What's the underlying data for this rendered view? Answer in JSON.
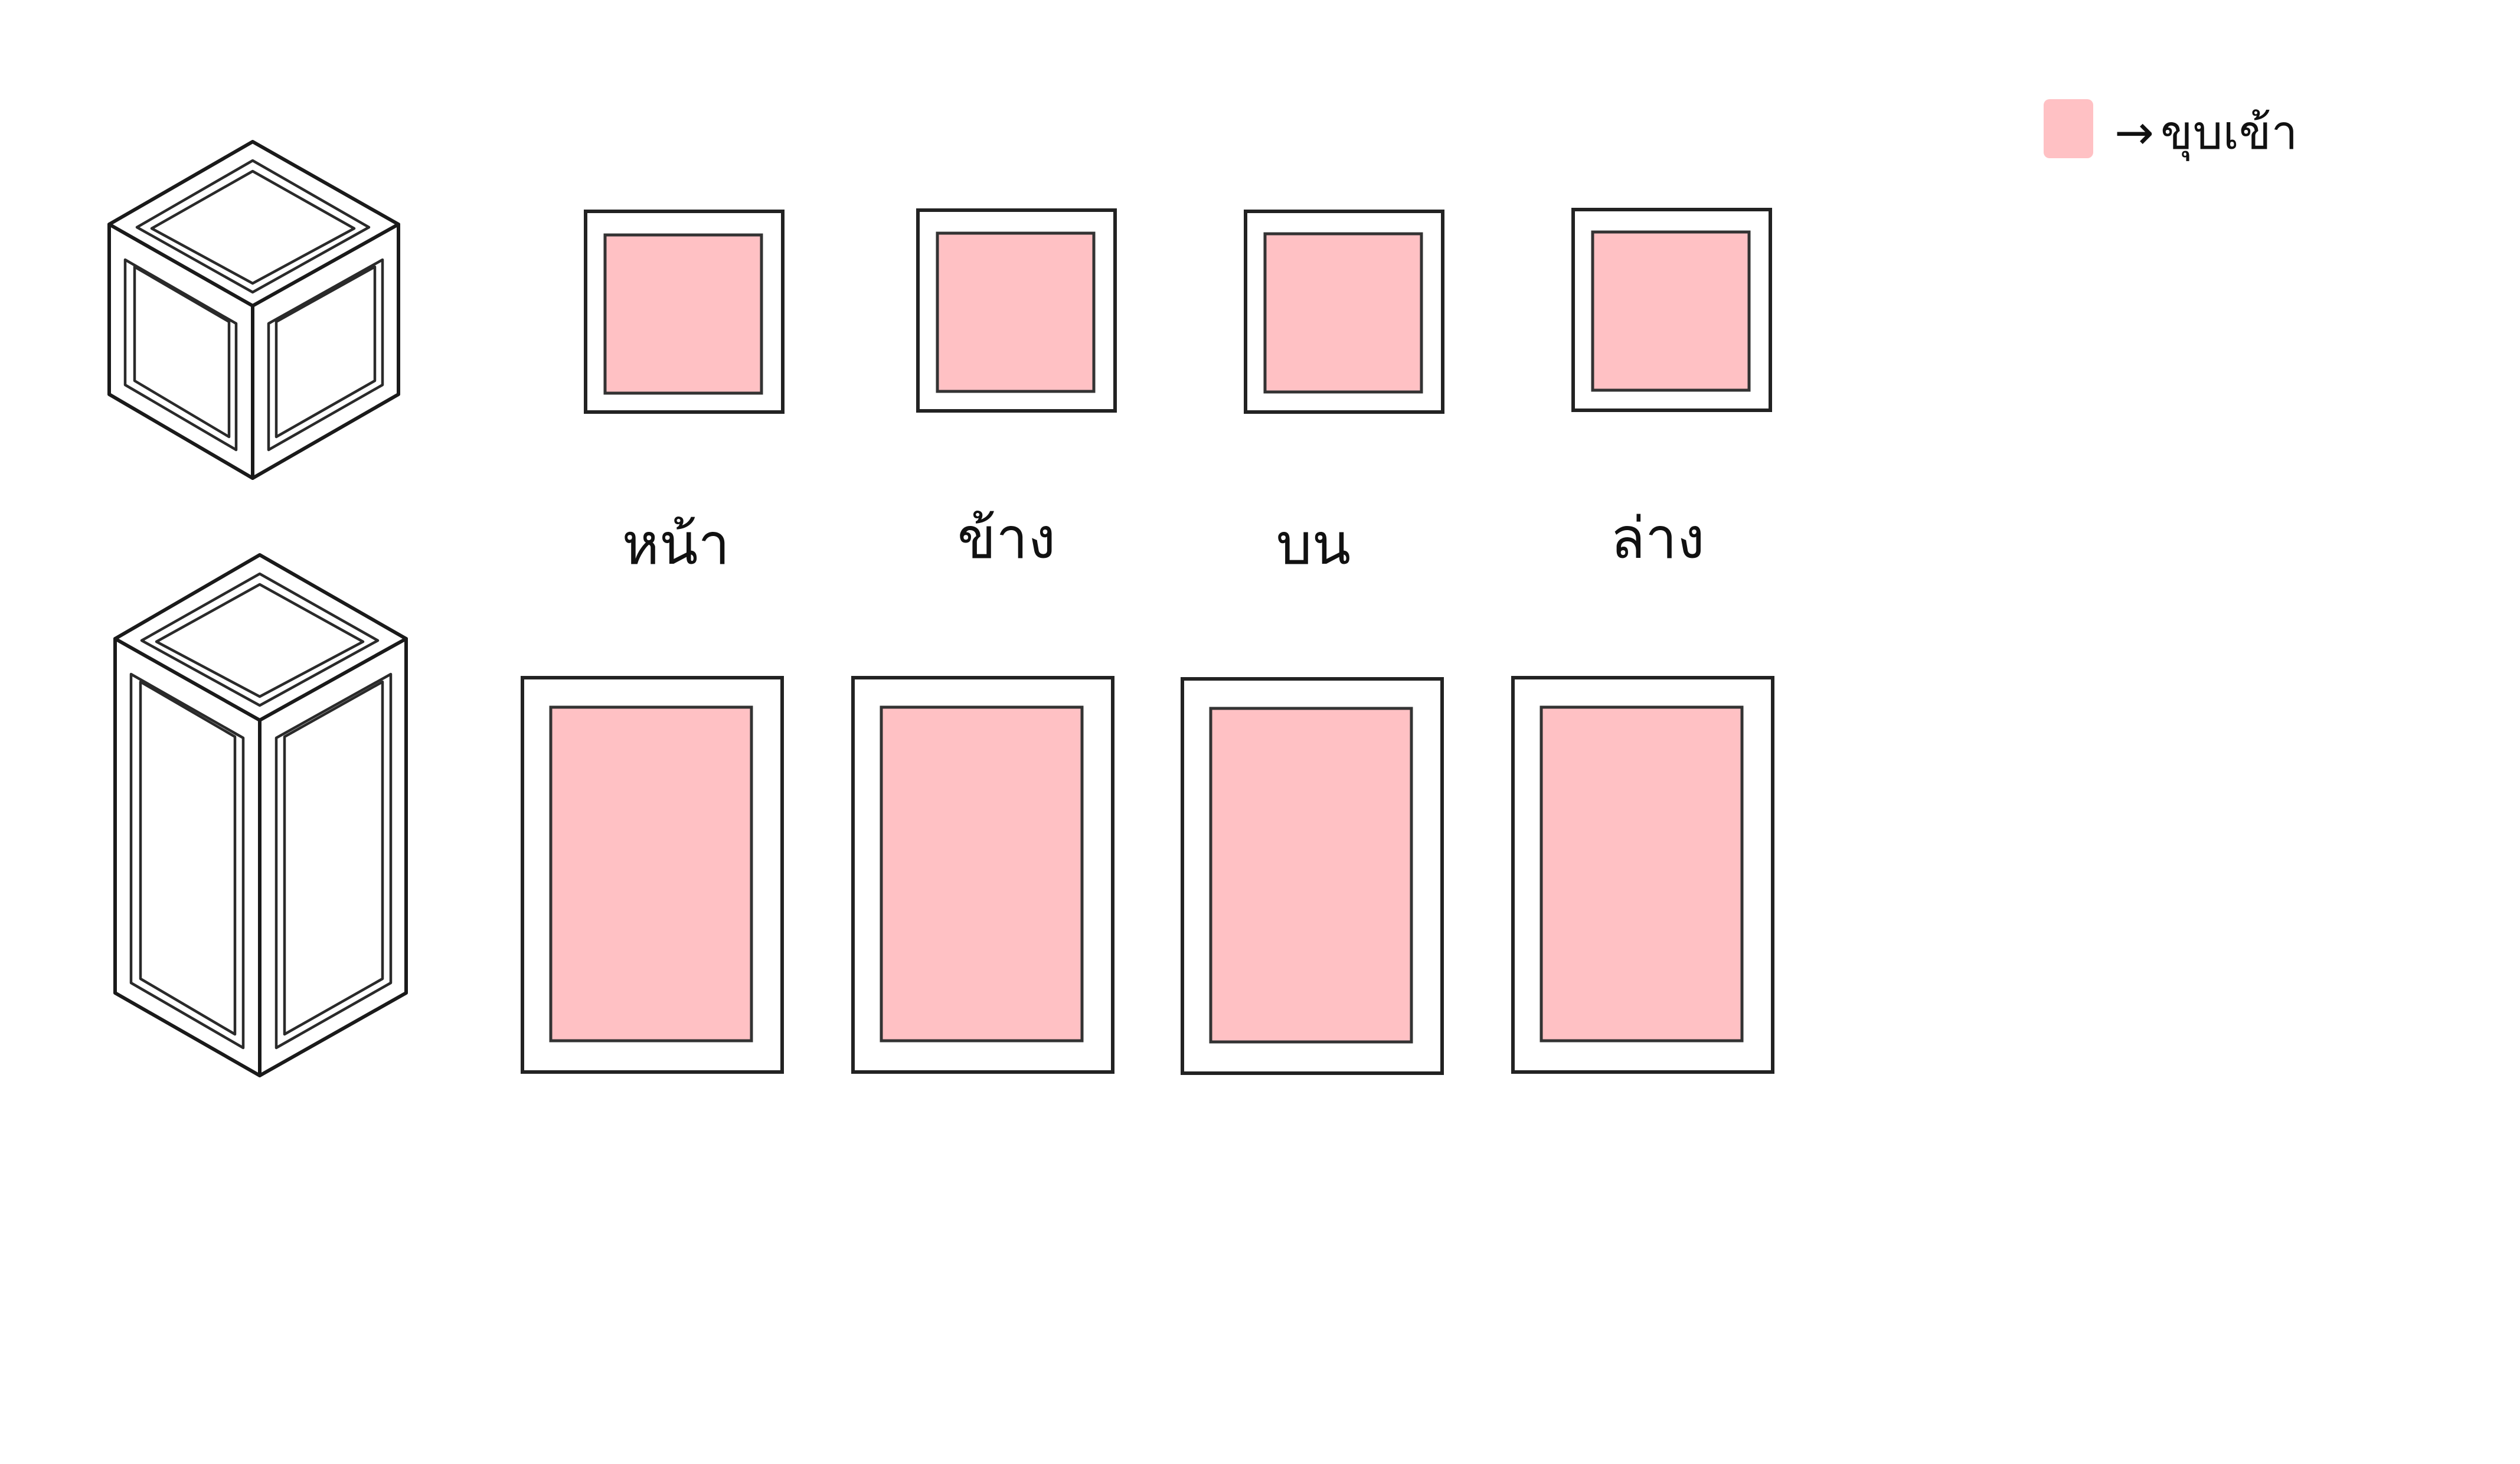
{
  "legend": {
    "swatch_color": "#ffc1c4",
    "arrow": "→",
    "label": "ขุบเข้า"
  },
  "fill_color": "#ffc1c4",
  "face_labels": [
    {
      "id": "front",
      "label": "หน้า"
    },
    {
      "id": "side",
      "label": "ข้าง"
    },
    {
      "id": "top",
      "label": "บน"
    },
    {
      "id": "bottom",
      "label": "ล่าง"
    }
  ],
  "icons": {
    "cube": "cube-frame-icon",
    "tall_box": "tall-box-frame-icon"
  }
}
